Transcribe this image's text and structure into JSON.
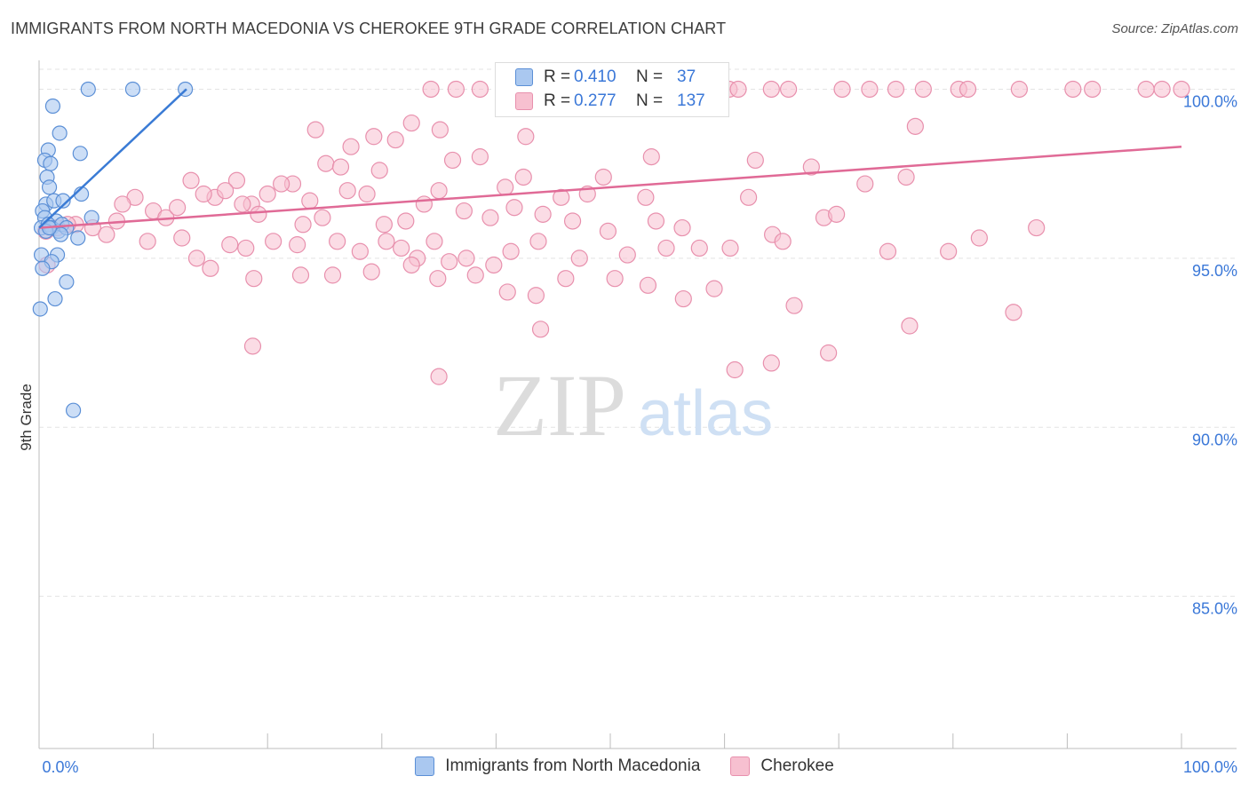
{
  "title": "IMMIGRANTS FROM NORTH MACEDONIA VS CHEROKEE 9TH GRADE CORRELATION CHART",
  "source": "Source: ZipAtlas.com",
  "watermark": {
    "zip": "ZIP",
    "atlas": "atlas"
  },
  "colors": {
    "blue_fill": "#aac8f0",
    "blue_stroke": "#5b8fd6",
    "blue_line": "#3a7bd5",
    "pink_fill": "#f7c0d0",
    "pink_stroke": "#e890ad",
    "pink_line": "#e06a96",
    "tick_label": "#3b78d8",
    "grid": "#e3e3e3"
  },
  "legend": {
    "rows": [
      {
        "r_label": "R =",
        "r_value": "0.410",
        "n_label": "N =",
        "n_value": "37",
        "color": "#aac8f0",
        "border": "#5b8fd6"
      },
      {
        "r_label": "R =",
        "r_value": "0.277",
        "n_label": "N =",
        "n_value": "137",
        "color": "#f7c0d0",
        "border": "#e890ad"
      }
    ]
  },
  "bottom_legend": [
    {
      "label": "Immigrants from North Macedonia",
      "color": "#aac8f0",
      "border": "#5b8fd6"
    },
    {
      "label": "Cherokee",
      "color": "#f7c0d0",
      "border": "#e890ad"
    }
  ],
  "chart_data": {
    "type": "scatter",
    "title": "IMMIGRANTS FROM NORTH MACEDONIA VS CHEROKEE 9TH GRADE CORRELATION CHART",
    "xlabel": "",
    "ylabel": "9th Grade",
    "xlim": [
      0,
      100
    ],
    "ylim": [
      80.5,
      100.8
    ],
    "x_tick_labels": [
      "0.0%",
      "100.0%"
    ],
    "y_ticks": [
      {
        "value": 100,
        "label": "100.0%"
      },
      {
        "value": 95,
        "label": "95.0%"
      },
      {
        "value": 90,
        "label": "90.0%"
      },
      {
        "value": 85,
        "label": "85.0%"
      }
    ],
    "series": [
      {
        "name": "Immigrants from North Macedonia",
        "R": 0.41,
        "N": 37,
        "trend": {
          "x0": 0,
          "y0": 95.9,
          "x1": 12.9,
          "y1": 100.0
        },
        "points": [
          [
            4.3,
            100.0
          ],
          [
            8.2,
            100.0
          ],
          [
            12.8,
            100.0
          ],
          [
            1.2,
            99.5
          ],
          [
            1.8,
            98.7
          ],
          [
            0.8,
            98.2
          ],
          [
            0.5,
            97.9
          ],
          [
            1.0,
            97.8
          ],
          [
            3.6,
            98.1
          ],
          [
            0.7,
            97.4
          ],
          [
            0.9,
            97.1
          ],
          [
            0.6,
            96.6
          ],
          [
            1.3,
            96.7
          ],
          [
            2.1,
            96.7
          ],
          [
            3.7,
            96.9
          ],
          [
            0.3,
            96.4
          ],
          [
            0.5,
            96.2
          ],
          [
            1.5,
            96.1
          ],
          [
            0.2,
            95.9
          ],
          [
            0.8,
            96.0
          ],
          [
            1.1,
            95.9
          ],
          [
            1.7,
            95.8
          ],
          [
            2.0,
            96.0
          ],
          [
            2.4,
            95.9
          ],
          [
            4.6,
            96.2
          ],
          [
            0.6,
            95.8
          ],
          [
            1.9,
            95.7
          ],
          [
            3.4,
            95.6
          ],
          [
            0.2,
            95.1
          ],
          [
            1.6,
            95.1
          ],
          [
            1.1,
            94.9
          ],
          [
            0.3,
            94.7
          ],
          [
            2.4,
            94.3
          ],
          [
            1.4,
            93.8
          ],
          [
            0.1,
            93.5
          ],
          [
            3.0,
            90.5
          ],
          [
            0.9,
            95.9
          ]
        ]
      },
      {
        "name": "Cherokee",
        "R": 0.277,
        "N": 137,
        "trend": {
          "x0": 0,
          "y0": 95.9,
          "x1": 100,
          "y1": 98.3
        },
        "points": [
          [
            34.3,
            100.0
          ],
          [
            36.5,
            100.0
          ],
          [
            38.6,
            100.0
          ],
          [
            53.4,
            100.0
          ],
          [
            55.6,
            100.0
          ],
          [
            57.4,
            100.0
          ],
          [
            58.9,
            100.0
          ],
          [
            60.4,
            100.0
          ],
          [
            61.2,
            100.0
          ],
          [
            64.1,
            100.0
          ],
          [
            65.6,
            100.0
          ],
          [
            70.3,
            100.0
          ],
          [
            72.7,
            100.0
          ],
          [
            75.0,
            100.0
          ],
          [
            77.4,
            100.0
          ],
          [
            80.5,
            100.0
          ],
          [
            81.3,
            100.0
          ],
          [
            85.8,
            100.0
          ],
          [
            90.5,
            100.0
          ],
          [
            92.2,
            100.0
          ],
          [
            96.9,
            100.0
          ],
          [
            98.3,
            100.0
          ],
          [
            100.0,
            100.0
          ],
          [
            58.0,
            100.0
          ],
          [
            32.6,
            99.0
          ],
          [
            29.3,
            98.6
          ],
          [
            24.2,
            98.8
          ],
          [
            35.1,
            98.8
          ],
          [
            31.2,
            98.5
          ],
          [
            76.7,
            98.9
          ],
          [
            42.6,
            98.6
          ],
          [
            53.6,
            98.0
          ],
          [
            62.7,
            97.9
          ],
          [
            38.6,
            98.0
          ],
          [
            27.3,
            98.3
          ],
          [
            25.1,
            97.8
          ],
          [
            26.4,
            97.7
          ],
          [
            29.8,
            97.6
          ],
          [
            22.2,
            97.2
          ],
          [
            17.3,
            97.3
          ],
          [
            13.3,
            97.3
          ],
          [
            23.7,
            96.7
          ],
          [
            18.6,
            96.6
          ],
          [
            21.2,
            97.2
          ],
          [
            36.2,
            97.9
          ],
          [
            42.4,
            97.4
          ],
          [
            49.4,
            97.4
          ],
          [
            67.6,
            97.7
          ],
          [
            72.3,
            97.2
          ],
          [
            75.9,
            97.4
          ],
          [
            35.0,
            97.0
          ],
          [
            40.8,
            97.1
          ],
          [
            41.6,
            96.5
          ],
          [
            45.7,
            96.8
          ],
          [
            48.0,
            96.9
          ],
          [
            53.1,
            96.8
          ],
          [
            62.1,
            96.8
          ],
          [
            15.4,
            96.8
          ],
          [
            8.4,
            96.8
          ],
          [
            7.3,
            96.6
          ],
          [
            10.0,
            96.4
          ],
          [
            11.1,
            96.2
          ],
          [
            12.1,
            96.5
          ],
          [
            14.4,
            96.9
          ],
          [
            16.3,
            97.0
          ],
          [
            17.8,
            96.6
          ],
          [
            19.2,
            96.3
          ],
          [
            20.0,
            96.9
          ],
          [
            23.1,
            96.0
          ],
          [
            24.8,
            96.2
          ],
          [
            27.0,
            97.0
          ],
          [
            28.7,
            96.9
          ],
          [
            32.1,
            96.1
          ],
          [
            30.2,
            96.0
          ],
          [
            33.7,
            96.6
          ],
          [
            37.2,
            96.4
          ],
          [
            39.5,
            96.2
          ],
          [
            44.1,
            96.3
          ],
          [
            46.7,
            96.1
          ],
          [
            49.8,
            95.8
          ],
          [
            54.0,
            96.1
          ],
          [
            56.3,
            95.9
          ],
          [
            64.2,
            95.7
          ],
          [
            57.8,
            95.3
          ],
          [
            60.5,
            95.3
          ],
          [
            65.1,
            95.5
          ],
          [
            68.7,
            96.2
          ],
          [
            69.8,
            96.3
          ],
          [
            74.3,
            95.2
          ],
          [
            79.6,
            95.2
          ],
          [
            82.3,
            95.6
          ],
          [
            87.3,
            95.9
          ],
          [
            4.7,
            95.9
          ],
          [
            5.9,
            95.7
          ],
          [
            6.8,
            96.1
          ],
          [
            3.2,
            96.0
          ],
          [
            2.5,
            96.0
          ],
          [
            1.6,
            95.9
          ],
          [
            0.6,
            95.8
          ],
          [
            9.5,
            95.5
          ],
          [
            12.5,
            95.6
          ],
          [
            13.8,
            95.0
          ],
          [
            16.7,
            95.4
          ],
          [
            18.1,
            95.3
          ],
          [
            20.5,
            95.5
          ],
          [
            22.6,
            95.4
          ],
          [
            26.1,
            95.5
          ],
          [
            28.1,
            95.2
          ],
          [
            30.4,
            95.5
          ],
          [
            31.7,
            95.3
          ],
          [
            33.1,
            95.0
          ],
          [
            34.6,
            95.5
          ],
          [
            35.9,
            94.9
          ],
          [
            37.4,
            95.0
          ],
          [
            39.8,
            94.8
          ],
          [
            41.3,
            95.2
          ],
          [
            43.7,
            95.5
          ],
          [
            47.3,
            95.0
          ],
          [
            51.5,
            95.1
          ],
          [
            54.9,
            95.3
          ],
          [
            15.0,
            94.7
          ],
          [
            18.8,
            94.4
          ],
          [
            22.9,
            94.5
          ],
          [
            25.7,
            94.5
          ],
          [
            29.1,
            94.6
          ],
          [
            32.6,
            94.8
          ],
          [
            34.9,
            94.4
          ],
          [
            38.2,
            94.5
          ],
          [
            41.0,
            94.0
          ],
          [
            43.5,
            93.9
          ],
          [
            46.1,
            94.4
          ],
          [
            50.4,
            94.4
          ],
          [
            53.3,
            94.2
          ],
          [
            56.4,
            93.8
          ],
          [
            59.1,
            94.1
          ],
          [
            66.1,
            93.6
          ],
          [
            85.3,
            93.4
          ],
          [
            69.1,
            92.2
          ],
          [
            76.2,
            93.0
          ],
          [
            64.1,
            91.9
          ],
          [
            18.7,
            92.4
          ],
          [
            35.0,
            91.5
          ],
          [
            43.9,
            92.9
          ],
          [
            60.9,
            91.7
          ],
          [
            0.7,
            94.8
          ]
        ]
      }
    ]
  }
}
